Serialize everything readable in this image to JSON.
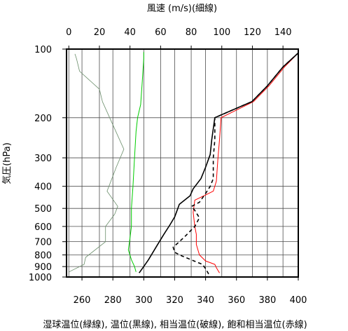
{
  "chart_data": {
    "type": "line",
    "top_axis": {
      "label": "風速 (m/s)(細線)",
      "range": [
        -1.5,
        150
      ],
      "ticks": [
        0,
        20,
        40,
        60,
        80,
        100,
        120,
        140
      ]
    },
    "bottom_axis": {
      "label": "湿球温位(緑線), 温位(黒線), 相当温位(破線), 飽和相当温位(赤線)",
      "range": [
        250,
        400
      ],
      "ticks": [
        260,
        280,
        300,
        320,
        340,
        360,
        380,
        400
      ]
    },
    "y_axis": {
      "label": "気圧(hPa)",
      "scale": "log",
      "inverted": true,
      "range": [
        100,
        1000
      ],
      "ticks": [
        100,
        200,
        300,
        400,
        500,
        600,
        700,
        800,
        900,
        1000
      ]
    },
    "grid": true,
    "colors": {
      "wind": "#6b8e6b",
      "wet_bulb": "#00cc00",
      "theta": "#000000",
      "theta_e": "#000000",
      "theta_es": "#ff0000"
    },
    "series": [
      {
        "key": "wind",
        "axis": "top",
        "points": [
          [
            0,
            950
          ],
          [
            10,
            880
          ],
          [
            11,
            820
          ],
          [
            24,
            700
          ],
          [
            24,
            600
          ],
          [
            30,
            530
          ],
          [
            32,
            490
          ],
          [
            25,
            420
          ],
          [
            31,
            330
          ],
          [
            36,
            275
          ],
          [
            22,
            170
          ],
          [
            20,
            150
          ],
          [
            7,
            125
          ],
          [
            5,
            110
          ],
          [
            4,
            105
          ]
        ]
      },
      {
        "key": "wet_bulb",
        "axis": "bottom",
        "points": [
          [
            295,
            950
          ],
          [
            294,
            900
          ],
          [
            292,
            840
          ],
          [
            290,
            760
          ],
          [
            291,
            680
          ],
          [
            292,
            600
          ],
          [
            292,
            500
          ],
          [
            293,
            400
          ],
          [
            294,
            300
          ],
          [
            295,
            230
          ],
          [
            296,
            200
          ],
          [
            298,
            175
          ],
          [
            299,
            140
          ],
          [
            300,
            110
          ],
          [
            300,
            103
          ]
        ]
      },
      {
        "key": "theta",
        "axis": "bottom",
        "points": [
          [
            297,
            960
          ],
          [
            300,
            900
          ],
          [
            303,
            840
          ],
          [
            309,
            720
          ],
          [
            313,
            650
          ],
          [
            317,
            590
          ],
          [
            320,
            545
          ],
          [
            323,
            480
          ],
          [
            330,
            440
          ],
          [
            332,
            410
          ],
          [
            337,
            370
          ],
          [
            340,
            330
          ],
          [
            343,
            290
          ],
          [
            344,
            250
          ],
          [
            346,
            200
          ],
          [
            370,
            170
          ],
          [
            380,
            145
          ],
          [
            390,
            120
          ],
          [
            400,
            104
          ]
        ]
      },
      {
        "key": "theta_e",
        "axis": "bottom",
        "points": [
          [
            342,
            970
          ],
          [
            340,
            920
          ],
          [
            338,
            880
          ],
          [
            325,
            810
          ],
          [
            320,
            780
          ],
          [
            319,
            740
          ],
          [
            323,
            700
          ],
          [
            327,
            660
          ],
          [
            333,
            600
          ],
          [
            336,
            550
          ],
          [
            333,
            510
          ],
          [
            331,
            490
          ],
          [
            336,
            470
          ],
          [
            340,
            430
          ],
          [
            343,
            400
          ],
          [
            345,
            370
          ],
          [
            345,
            300
          ],
          [
            346,
            250
          ],
          [
            346,
            200
          ],
          [
            370,
            170
          ],
          [
            380,
            145
          ],
          [
            390,
            120
          ],
          [
            400,
            104
          ]
        ]
      },
      {
        "key": "theta_es",
        "axis": "bottom",
        "points": [
          [
            349,
            960
          ],
          [
            347,
            910
          ],
          [
            346,
            880
          ],
          [
            340,
            850
          ],
          [
            336,
            800
          ],
          [
            334,
            720
          ],
          [
            334,
            650
          ],
          [
            333,
            600
          ],
          [
            332,
            520
          ],
          [
            333,
            460
          ],
          [
            339,
            440
          ],
          [
            345,
            420
          ],
          [
            347,
            380
          ],
          [
            348,
            300
          ],
          [
            349,
            250
          ],
          [
            350,
            200
          ],
          [
            371,
            170
          ],
          [
            381,
            145
          ],
          [
            391,
            120
          ],
          [
            400,
            104
          ]
        ]
      }
    ]
  }
}
